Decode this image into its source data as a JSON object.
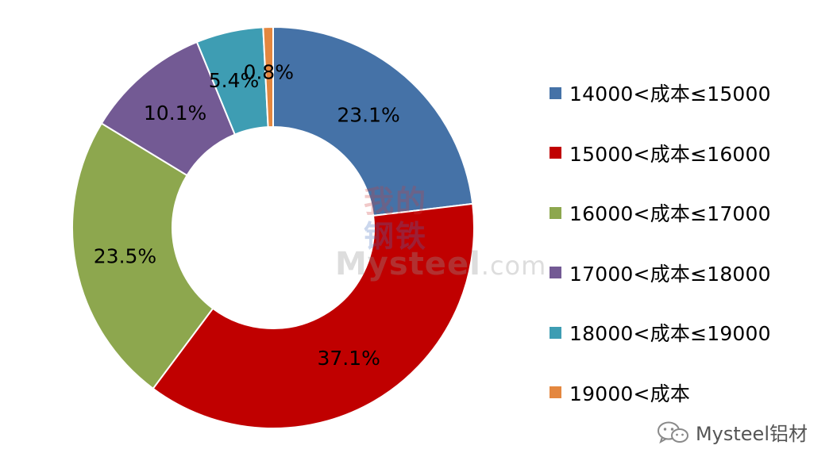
{
  "chart_data": {
    "type": "pie",
    "title": "",
    "categories": [
      "14000<成本≤15000",
      "15000<成本≤16000",
      "16000<成本≤17000",
      "17000<成本≤18000",
      "18000<成本≤19000",
      "19000<成本"
    ],
    "values": [
      23.1,
      37.1,
      23.5,
      10.1,
      5.4,
      0.8
    ],
    "labels": [
      "23.1%",
      "37.1%",
      "23.5%",
      "10.1%",
      "5.4%",
      "0.8%"
    ],
    "colors": [
      "#4572A7",
      "#C00000",
      "#8DA74E",
      "#735A94",
      "#3E9DB3",
      "#E4873F"
    ],
    "donut": true,
    "legend_position": "right"
  },
  "watermark": {
    "line1": "我的",
    "line2": "钢铁",
    "line3": "Mysteel",
    "line3_suffix": ".com"
  },
  "footer": {
    "brand_label": "Mysteel铝材",
    "icon": "wechat-icon"
  }
}
